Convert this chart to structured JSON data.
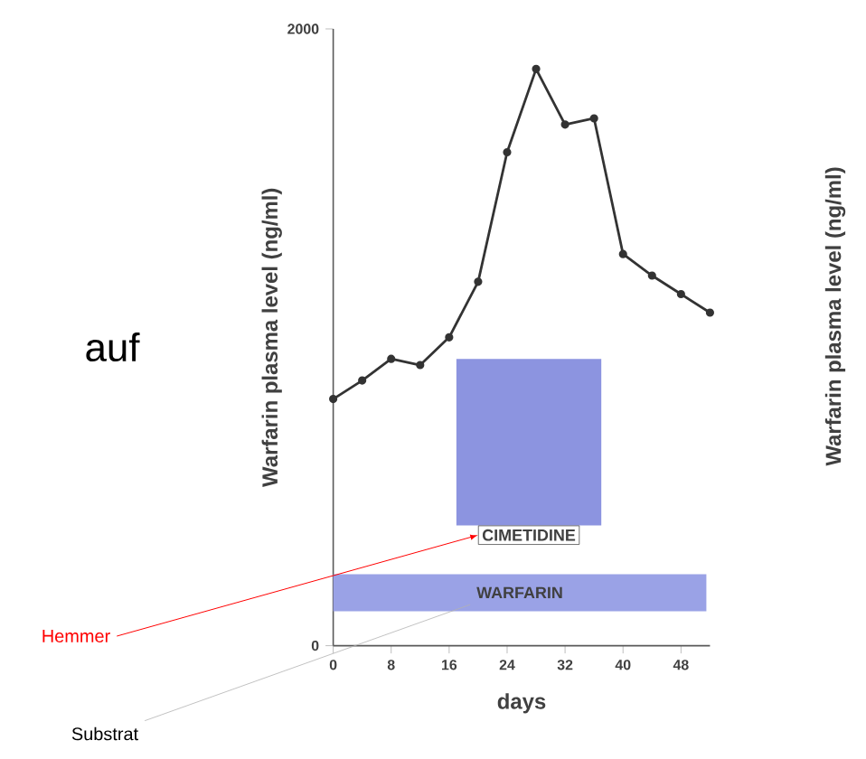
{
  "chart_data": {
    "type": "line",
    "xlabel": "days",
    "ylabel": "Warfarin plasma level (ng/ml)",
    "x": [
      0,
      4,
      8,
      12,
      16,
      20,
      24,
      28,
      32,
      36,
      40,
      44,
      48,
      52
    ],
    "series": [
      {
        "color": "#333333",
        "values": [
          800,
          860,
          930,
          910,
          1000,
          1180,
          1600,
          1870,
          1690,
          1710,
          1270,
          1200,
          1140,
          1080
        ]
      }
    ],
    "xlim": [
      0,
      52
    ],
    "xticks": [
      0,
      8,
      16,
      24,
      32,
      40,
      48
    ],
    "ylim": [
      0,
      2000
    ],
    "yticks": [
      0,
      2000
    ],
    "marker": "circle",
    "line_style": "solid",
    "grid": false,
    "bands": [
      {
        "axis": "x",
        "from": 17,
        "to": 37,
        "label": "CIMETIDINE",
        "color": "#8c94e0"
      },
      {
        "axis": "x",
        "from": 0,
        "to": 51.5,
        "label": "WARFARIN",
        "color": "#9aa2e6"
      }
    ],
    "annotations": [
      "auf",
      "Hemmer",
      "Substrat",
      "Warfarin plasma level (ng/ml)"
    ]
  }
}
